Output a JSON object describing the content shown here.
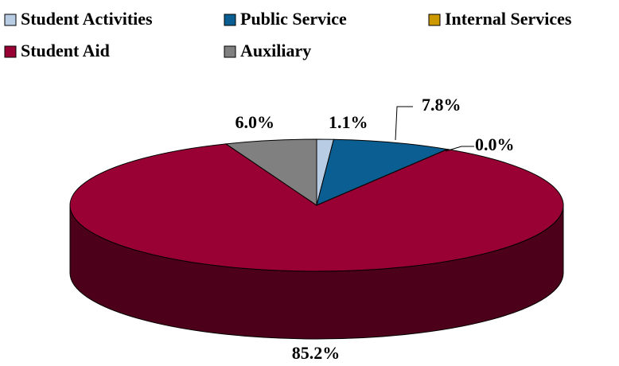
{
  "chart_data": {
    "type": "pie",
    "categories": [
      "Student Activities",
      "Public Service",
      "Internal Services",
      "Student Aid",
      "Auxiliary"
    ],
    "values": [
      1.1,
      7.8,
      0.0,
      85.2,
      6.0
    ],
    "value_labels": [
      "1.1%",
      "7.8%",
      "0.0%",
      "85.2%",
      "6.0%"
    ],
    "colors": [
      "#b8cce4",
      "#0b5e91",
      "#cc9900",
      "#990033",
      "#808080"
    ]
  }
}
